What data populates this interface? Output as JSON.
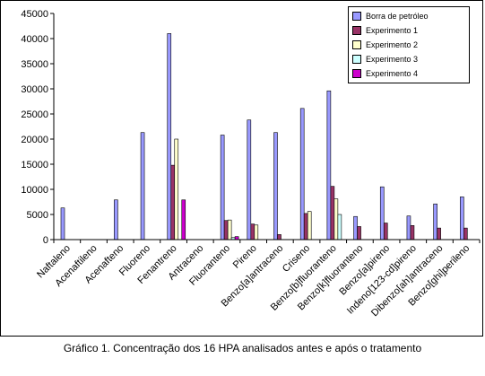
{
  "caption": "Gráfico 1. Concentração dos 16 HPA analisados antes e após o tratamento",
  "chart_data": {
    "type": "bar",
    "title": "",
    "xlabel": "",
    "ylabel": "",
    "ylim": [
      0,
      45000
    ],
    "yticks": [
      "0",
      "5000",
      "10000",
      "15000",
      "20000",
      "25000",
      "30000",
      "35000",
      "40000",
      "45000"
    ],
    "grid": false,
    "legend_position": "top-right",
    "categories": [
      "Naftaleno",
      "Acenaftileno",
      "Acenafteno",
      "Fluoreno",
      "Fenantreno",
      "Antraceno",
      "Fluoranteno",
      "Pireno",
      "Benzo[a]antraceno",
      "Criseno",
      "Benzo[b]fluoranteno",
      "Benzo[k]fluoranteno",
      "Benzo[a]pireno",
      "Indeno[123-cd]pireno",
      "Dibenzo[ah]antraceno",
      "Benzo[ghi]perileno"
    ],
    "series": [
      {
        "name": "Borra de petróleo",
        "color": "#9999FF",
        "values": [
          6300,
          0,
          7900,
          21300,
          41000,
          0,
          20800,
          23800,
          21300,
          26100,
          29600,
          4600,
          10500,
          4700,
          7100,
          8500
        ]
      },
      {
        "name": "Experimento 1",
        "color": "#993366",
        "values": [
          0,
          0,
          0,
          0,
          14800,
          0,
          3800,
          3100,
          1000,
          5200,
          10600,
          2600,
          3300,
          2800,
          2300,
          2300
        ]
      },
      {
        "name": "Experimento 2",
        "color": "#FFFFCC",
        "values": [
          0,
          0,
          0,
          0,
          20000,
          0,
          3900,
          2900,
          0,
          5600,
          8100,
          0,
          0,
          0,
          0,
          0
        ]
      },
      {
        "name": "Experimento 3",
        "color": "#CCFFFF",
        "values": [
          0,
          0,
          0,
          0,
          0,
          0,
          400,
          0,
          0,
          0,
          5000,
          0,
          0,
          0,
          0,
          0
        ]
      },
      {
        "name": "Experimento 4",
        "color": "#CC00CC",
        "values": [
          0,
          0,
          0,
          0,
          7900,
          0,
          600,
          0,
          0,
          0,
          0,
          0,
          0,
          0,
          0,
          0
        ]
      }
    ]
  }
}
